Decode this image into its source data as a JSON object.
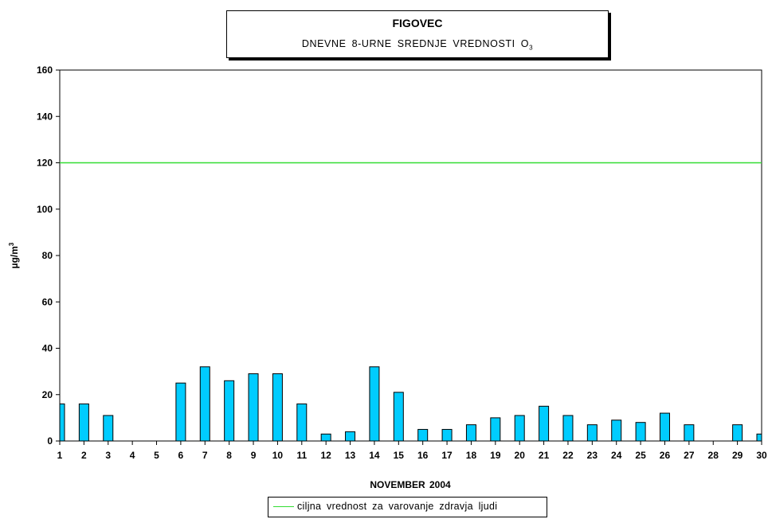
{
  "chart_data": {
    "type": "bar",
    "title": "FIGOVEC",
    "subtitle": "DNEVNE 8-URNE SREDNJE VREDNOSTI O",
    "subtitle_subscript": "3",
    "xlabel": "NOVEMBER  2004",
    "ylabel": "µg/m",
    "ylabel_superscript": "3",
    "ylim": [
      0,
      160
    ],
    "yticks": [
      0,
      20,
      40,
      60,
      80,
      100,
      120,
      140,
      160
    ],
    "grid": false,
    "categories": [
      "1",
      "2",
      "3",
      "4",
      "5",
      "6",
      "7",
      "8",
      "9",
      "10",
      "11",
      "12",
      "13",
      "14",
      "15",
      "16",
      "17",
      "18",
      "19",
      "20",
      "21",
      "22",
      "23",
      "24",
      "25",
      "26",
      "27",
      "28",
      "29",
      "30"
    ],
    "values": [
      16,
      16,
      11,
      null,
      null,
      25,
      32,
      26,
      29,
      29,
      16,
      3,
      4,
      32,
      21,
      5,
      5,
      7,
      10,
      11,
      15,
      11,
      7,
      9,
      8,
      12,
      7,
      null,
      7,
      3
    ],
    "bar_color": "#00ccff",
    "reference_line": {
      "name": "ciljna  vrednost  za  varovanje  zdravja  ljudi",
      "value": 120,
      "color": "#33dd33"
    },
    "legend_position": "bottom-center"
  }
}
